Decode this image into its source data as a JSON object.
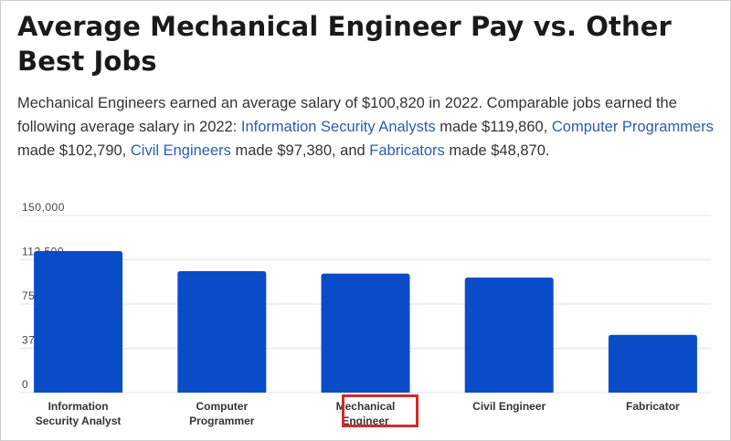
{
  "title": "Average Mechanical Engineer Pay vs. Other Best Jobs",
  "summary": {
    "part1": "Mechanical Engineers earned an average salary of $100,820 in 2022. Comparable jobs earned the following average salary in 2022: ",
    "link1": "Information Security Analysts",
    "part2": " made $119,860, ",
    "link2": "Computer Programmers",
    "part3": " made $102,790, ",
    "link3": "Civil Engineers",
    "part4": " made $97,380, and ",
    "link4": "Fabricators",
    "part5": " made $48,870."
  },
  "chart_data": {
    "type": "bar",
    "categories": [
      [
        "Information",
        "Security Analyst"
      ],
      [
        "Computer",
        "Programmer"
      ],
      [
        "Mechanical",
        "Engineer"
      ],
      [
        "Civil Engineer"
      ],
      [
        "Fabricator"
      ]
    ],
    "values": [
      119860,
      102790,
      100820,
      97380,
      48870
    ],
    "ylim": [
      0,
      150000
    ],
    "yticks": [
      0,
      37500,
      75000,
      112500,
      150000
    ],
    "ytick_labels": [
      "0",
      "37,500",
      "75,000",
      "112,500",
      "150,000"
    ],
    "grid": true,
    "highlighted_category_index": 2,
    "colors": {
      "bar": "#0a4cc7",
      "grid": "#e3e3e3",
      "tick_text": "#444444",
      "highlight_border": "#d22a2a"
    }
  }
}
